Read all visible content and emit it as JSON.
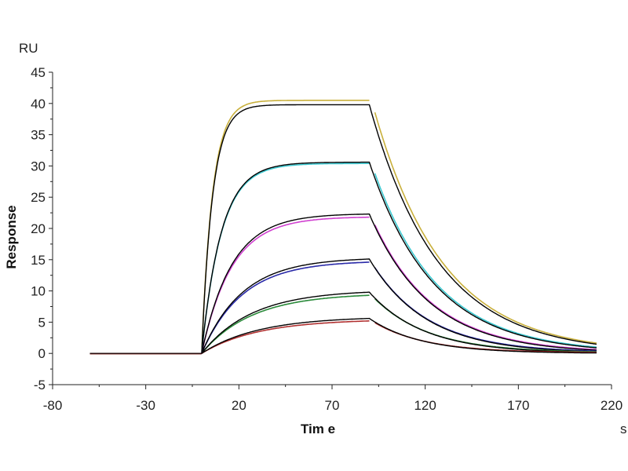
{
  "chart_data": {
    "type": "line",
    "title": "",
    "xlabel": "Tim e",
    "ylabel": "Response",
    "y_unit": "RU",
    "x_unit": "s",
    "xlim": [
      -80,
      220
    ],
    "ylim": [
      -5,
      45
    ],
    "x_ticks": [
      -80,
      -30,
      20,
      70,
      120,
      170,
      220
    ],
    "y_ticks": [
      -5,
      0,
      5,
      10,
      15,
      20,
      25,
      30,
      35,
      40,
      45
    ],
    "grid": false,
    "baseline_start": -60,
    "injection_start": 0,
    "injection_end": 90,
    "data_resume": 93,
    "run_end": 212,
    "fit_color": "#000000",
    "series": [
      {
        "name": "curve-1",
        "color": "#c9b03c",
        "plateau": 39.8,
        "kobs": 0.17,
        "kd": 0.027,
        "data_plateau": 40.5
      },
      {
        "name": "curve-2",
        "color": "#3cc8d0",
        "plateau": 30.6,
        "kobs": 0.095,
        "kd": 0.029,
        "data_plateau": 30.4
      },
      {
        "name": "curve-3",
        "color": "#d040d0",
        "plateau": 22.3,
        "kobs": 0.062,
        "kd": 0.031,
        "data_plateau": 21.8
      },
      {
        "name": "curve-4",
        "color": "#2a2aa8",
        "plateau": 15.1,
        "kobs": 0.046,
        "kd": 0.033,
        "data_plateau": 14.6
      },
      {
        "name": "curve-5",
        "color": "#2a8a3a",
        "plateau": 9.8,
        "kobs": 0.037,
        "kd": 0.034,
        "data_plateau": 9.3
      },
      {
        "name": "curve-6",
        "color": "#b03030",
        "plateau": 5.6,
        "kobs": 0.033,
        "kd": 0.036,
        "data_plateau": 5.2
      }
    ]
  }
}
